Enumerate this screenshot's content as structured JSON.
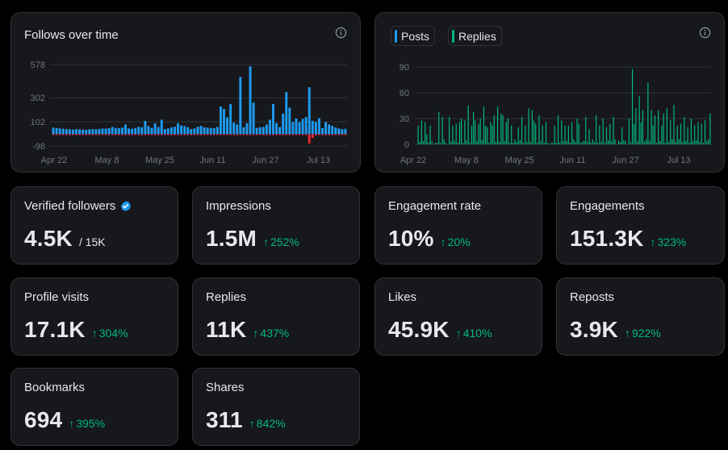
{
  "follows_card": {
    "title": "Follows over time",
    "info_icon": "info-icon"
  },
  "posts_card": {
    "legend": [
      {
        "label": "Posts",
        "color": "#1d9bf0"
      },
      {
        "label": "Replies",
        "color": "#00ba7c"
      }
    ],
    "info_icon": "info-icon"
  },
  "colors": {
    "follows_positive": "#1d9bf0",
    "follows_negative": "#f4212e",
    "posts": "#1d9bf0",
    "replies": "#00ba7c",
    "delta_positive": "#00ba7c"
  },
  "chart_data": [
    {
      "type": "bar",
      "title": "Follows over time",
      "x_ticks": [
        "Apr 22",
        "May 8",
        "May 25",
        "Jun 11",
        "Jun 27",
        "Jul 13"
      ],
      "y_ticks": [
        578,
        302,
        102,
        -98
      ],
      "ylim": [
        -98,
        578
      ],
      "grid": true,
      "series": [
        {
          "values": [
            55,
            52,
            48,
            45,
            42,
            40,
            38,
            42,
            40,
            38,
            36,
            40,
            42,
            40,
            44,
            48,
            46,
            50,
            60,
            52,
            50,
            55,
            80,
            48,
            45,
            52,
            62,
            58,
            110,
            68,
            52,
            90,
            60,
            120,
            42,
            48,
            56,
            62,
            90,
            72,
            68,
            58,
            42,
            48,
            62,
            70,
            58,
            54,
            52,
            50,
            60,
            230,
            210,
            140,
            250,
            95,
            80,
            475,
            58,
            90,
            562,
            262,
            52,
            58,
            60,
            80,
            120,
            250,
            92,
            60,
            170,
            350,
            220,
            100,
            130,
            100,
            128,
            142,
            390,
            110,
            102,
            132,
            50,
            100,
            80,
            70,
            56,
            48,
            42,
            45
          ]
        },
        {
          "values": [
            -8,
            -8,
            -8,
            -8,
            -8,
            -8,
            -8,
            -8,
            -8,
            -8,
            -8,
            -8,
            -8,
            -8,
            -8,
            -8,
            -8,
            -8,
            -8,
            -8,
            -8,
            -8,
            -8,
            -8,
            -8,
            -8,
            -8,
            -8,
            -8,
            -8,
            -8,
            -8,
            -8,
            -8,
            -8,
            -8,
            -8,
            -8,
            -8,
            -8,
            -8,
            -8,
            -8,
            -8,
            -8,
            -8,
            -8,
            -8,
            -8,
            -8,
            -8,
            -8,
            -8,
            -8,
            -8,
            -8,
            -8,
            -8,
            -8,
            -8,
            -8,
            -8,
            -8,
            -8,
            -8,
            -8,
            -8,
            -8,
            -8,
            -8,
            -8,
            -8,
            -8,
            -8,
            -8,
            -8,
            -8,
            -8,
            -78,
            -32,
            -10,
            -8,
            -8,
            -8,
            -8,
            -8,
            -8,
            -8,
            -8,
            -8
          ]
        }
      ]
    },
    {
      "type": "bar",
      "x_ticks": [
        "Apr 22",
        "May 8",
        "May 25",
        "Jun 11",
        "Jun 27",
        "Jul 13"
      ],
      "y_ticks": [
        90,
        60,
        30,
        0
      ],
      "ylim": [
        0,
        90
      ],
      "grid": true,
      "series": [
        {
          "name": "Posts",
          "values": [
            0,
            0,
            0,
            0,
            0,
            0,
            0,
            0,
            0,
            0,
            0,
            0,
            0,
            0,
            0,
            0,
            0,
            0,
            0,
            0,
            0,
            0,
            0,
            0,
            0,
            0,
            0,
            0,
            0,
            0,
            0,
            0,
            0,
            0,
            0,
            0,
            0,
            0,
            0,
            0,
            0,
            0,
            0,
            0,
            0,
            0,
            0,
            0,
            0,
            0,
            0,
            0,
            0,
            0,
            0,
            0,
            0,
            0,
            0,
            0,
            0,
            0,
            0,
            0,
            0,
            0,
            0,
            0,
            0,
            0,
            0,
            0,
            0,
            0,
            0,
            0,
            0,
            0,
            0,
            0,
            0,
            0,
            0,
            0,
            0,
            0,
            0,
            0,
            0,
            0,
            0,
            0,
            0,
            0,
            0,
            0,
            0,
            0,
            0,
            0,
            0,
            0,
            0,
            0,
            0,
            0,
            0,
            0,
            0,
            0,
            0,
            0,
            0,
            0,
            0,
            0,
            0,
            0,
            0,
            0,
            0,
            0,
            0,
            0,
            0,
            0,
            0,
            0,
            0,
            0,
            0,
            0,
            0,
            0,
            0,
            0,
            0,
            0,
            0,
            0,
            0,
            0,
            0,
            0,
            0,
            0,
            0,
            0,
            0,
            0,
            0,
            0,
            0,
            0,
            0,
            0,
            0,
            0,
            0,
            0,
            0,
            0,
            0,
            0,
            0,
            0,
            0,
            0,
            0,
            0
          ]
        },
        {
          "name": "Replies",
          "values": [
            22,
            3,
            28,
            4,
            26,
            12,
            2,
            22,
            4,
            0,
            2,
            2,
            38,
            2,
            32,
            6,
            2,
            0,
            32,
            3,
            22,
            4,
            24,
            2,
            26,
            30,
            2,
            28,
            5,
            45,
            2,
            22,
            38,
            28,
            4,
            24,
            30,
            5,
            44,
            22,
            20,
            2,
            26,
            22,
            34,
            3,
            44,
            3,
            36,
            34,
            4,
            26,
            30,
            2,
            22,
            2,
            6,
            3,
            20,
            5,
            32,
            2,
            22,
            3,
            42,
            3,
            40,
            28,
            24,
            2,
            34,
            4,
            22,
            2,
            26,
            2,
            0,
            2,
            2,
            22,
            2,
            34,
            2,
            28,
            4,
            22,
            4,
            22,
            2,
            26,
            6,
            3,
            30,
            24,
            2,
            3,
            4,
            32,
            3,
            18,
            2,
            6,
            3,
            34,
            2,
            22,
            3,
            30,
            2,
            20,
            5,
            24,
            4,
            32,
            6,
            0,
            4,
            3,
            20,
            5,
            4,
            0,
            30,
            3,
            88,
            24,
            42,
            4,
            56,
            26,
            40,
            3,
            6,
            72,
            4,
            40,
            22,
            34,
            2,
            40,
            4,
            22,
            36,
            2,
            42,
            3,
            28,
            6,
            46,
            3,
            22,
            6,
            24,
            3,
            32,
            4,
            20,
            2,
            30,
            4,
            22,
            5,
            26,
            3,
            24,
            2,
            28,
            4,
            6,
            36
          ]
        }
      ]
    }
  ],
  "stats": [
    {
      "label": "Verified followers",
      "value": "4.5K",
      "sub": "/ 15K",
      "verified_icon": "verified-badge-icon"
    },
    {
      "label": "Impressions",
      "value": "1.5M",
      "delta": "252%"
    },
    {
      "label": "Engagement rate",
      "value": "10%",
      "delta": "20%"
    },
    {
      "label": "Engagements",
      "value": "151.3K",
      "delta": "323%"
    },
    {
      "label": "Profile visits",
      "value": "17.1K",
      "delta": "304%"
    },
    {
      "label": "Replies",
      "value": "11K",
      "delta": "437%"
    },
    {
      "label": "Likes",
      "value": "45.9K",
      "delta": "410%"
    },
    {
      "label": "Reposts",
      "value": "3.9K",
      "delta": "922%"
    },
    {
      "label": "Bookmarks",
      "value": "694",
      "delta": "395%"
    },
    {
      "label": "Shares",
      "value": "311",
      "delta": "842%"
    }
  ],
  "delta_arrow_icon": "arrow-up-icon"
}
